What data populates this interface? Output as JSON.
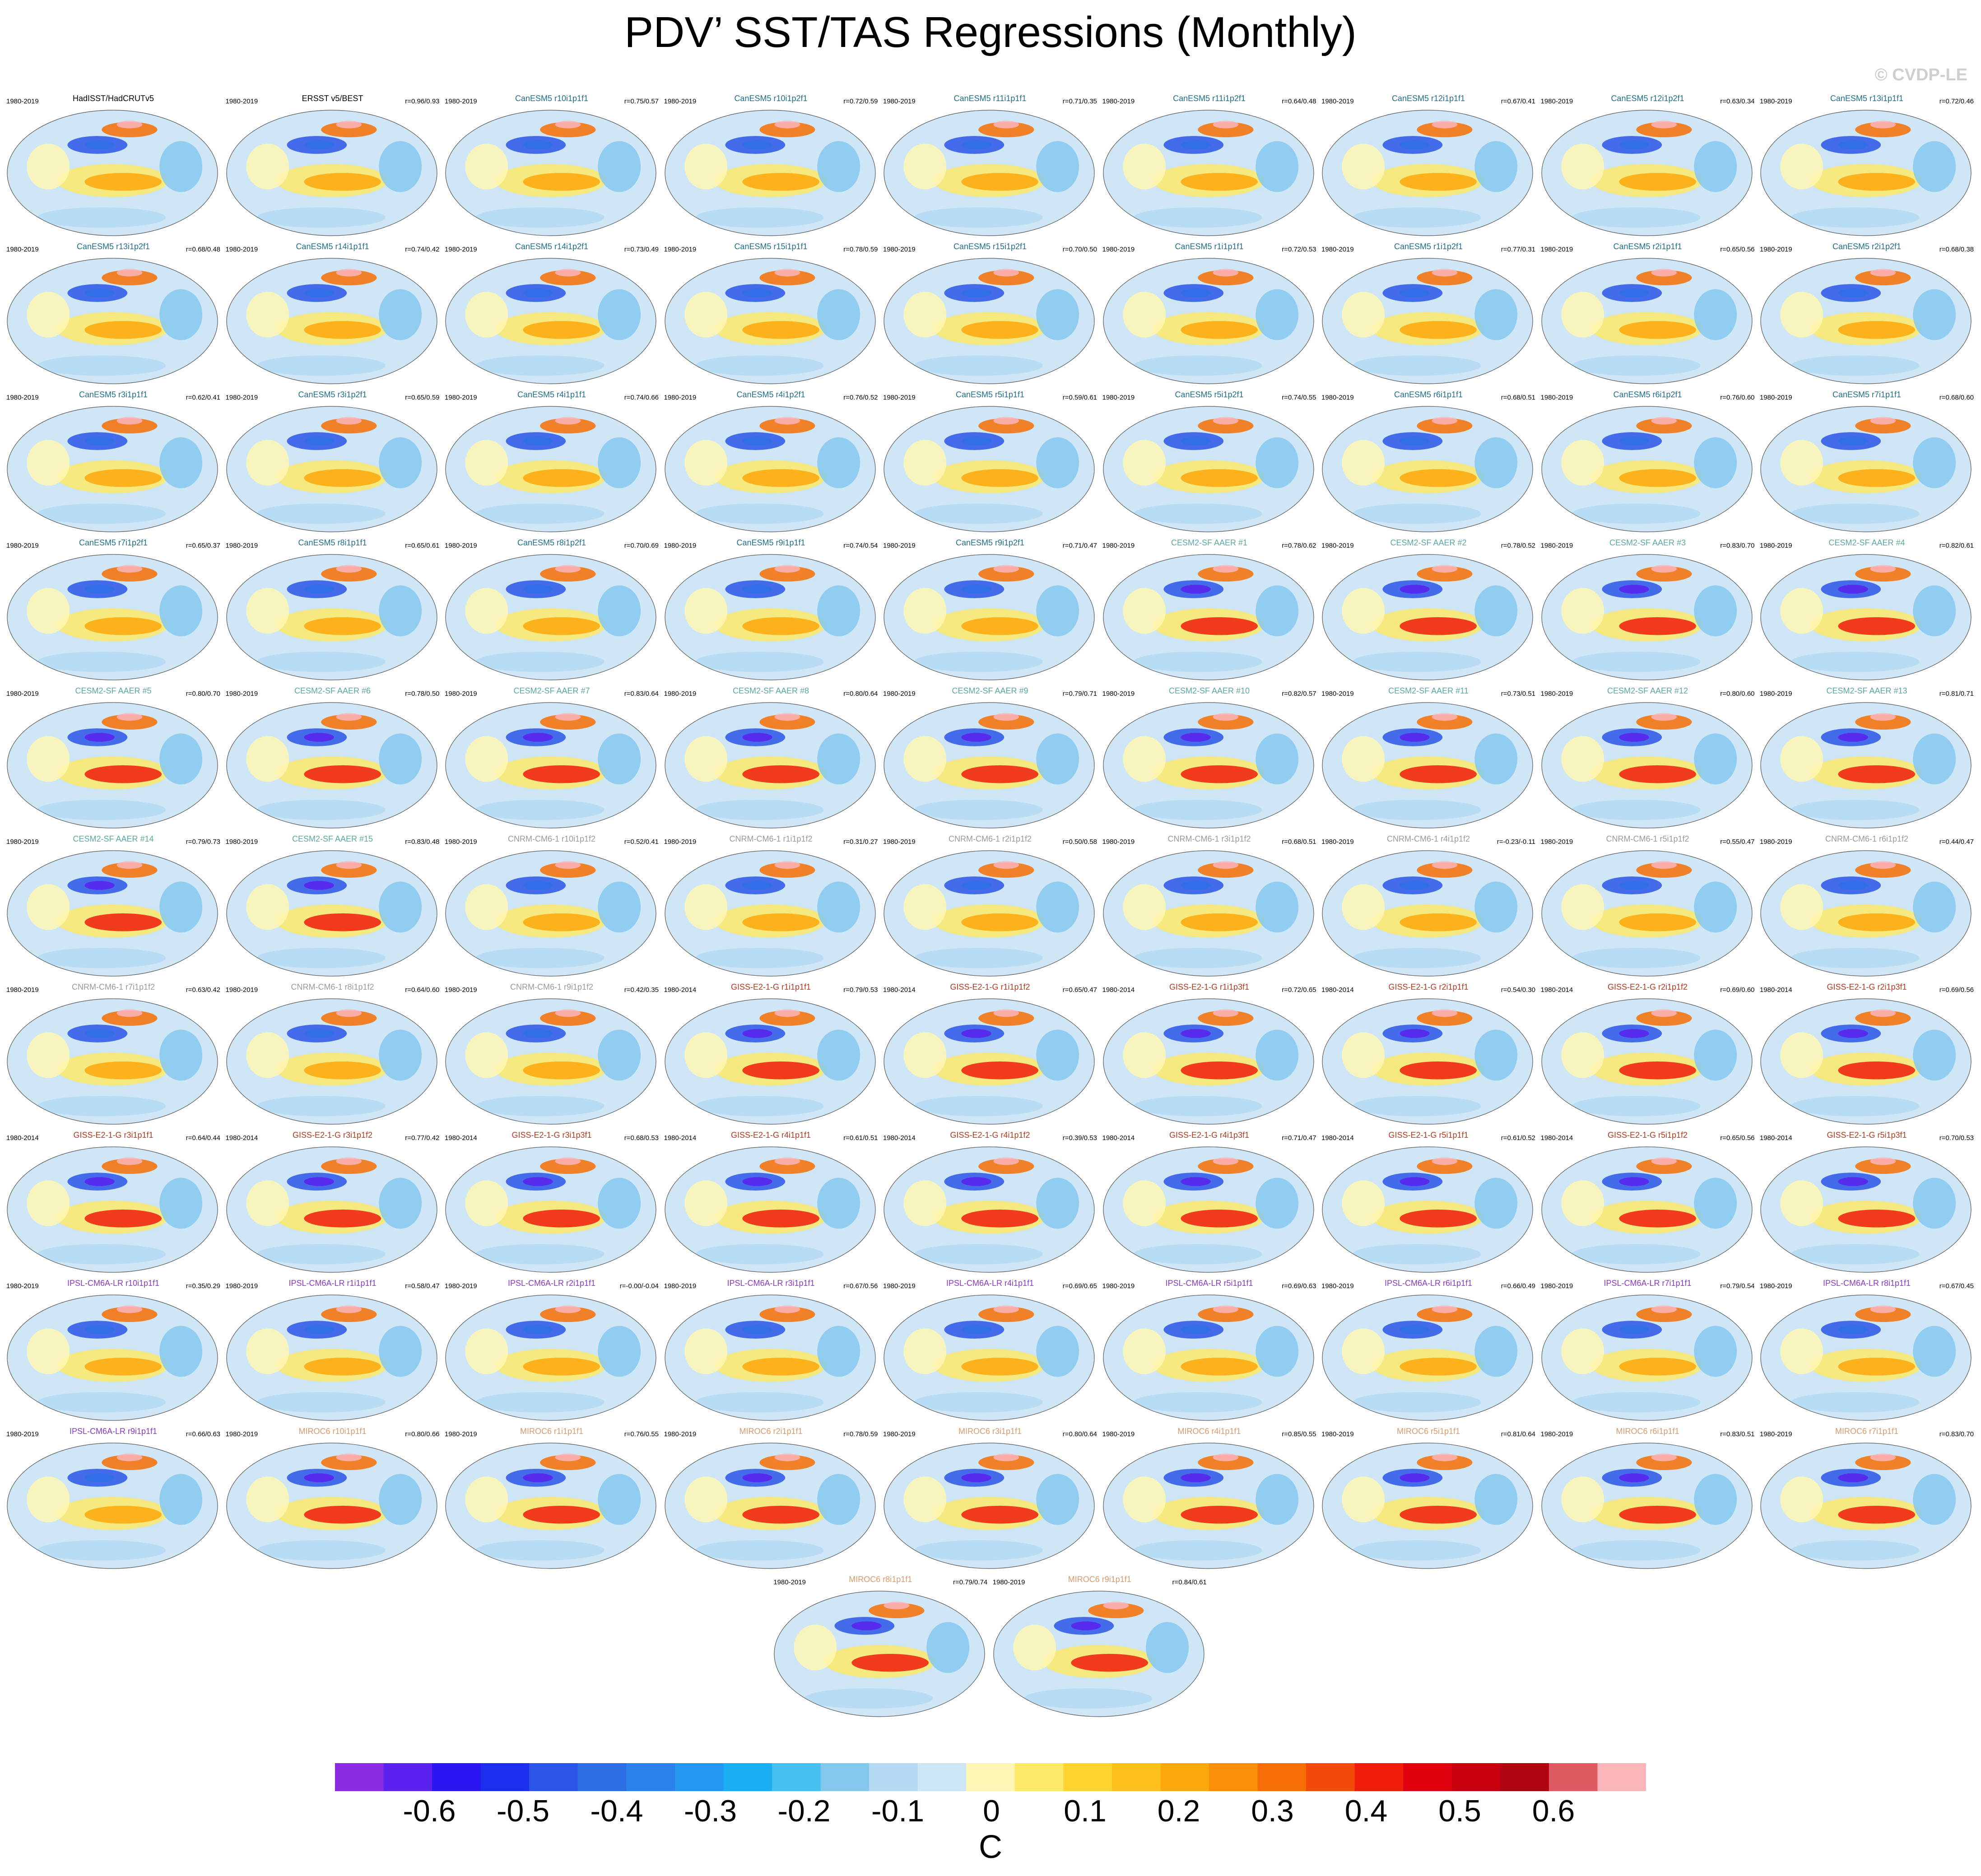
{
  "title": "PDV’ SST/TAS Regressions (Monthly)",
  "watermark": "© CVDP-LE",
  "colors": {
    "obs_title": "#000000",
    "CanESM5": "#1f6f8b",
    "CESM2": "#5aa9a0",
    "CNRM": "#9a9a9a",
    "GISS": "#b33a1e",
    "IPSL": "#8a38c8",
    "MIROC6": "#d99a6c"
  },
  "colorbar": {
    "ticks": [
      "-0.6",
      "-0.5",
      "-0.4",
      "-0.3",
      "-0.2",
      "-0.1",
      "0",
      "0.1",
      "0.2",
      "0.3",
      "0.4",
      "0.5",
      "0.6"
    ],
    "units": "C",
    "colors": [
      "#8a2be2",
      "#5a20ee",
      "#2a16f5",
      "#1c2fee",
      "#2a55e8",
      "#2e6fe6",
      "#2b82ec",
      "#2596f2",
      "#1aaef5",
      "#47bff0",
      "#85c8ee",
      "#b3d9f3",
      "#cde6f5",
      "#fff6b4",
      "#fde96a",
      "#fed530",
      "#fdbf1a",
      "#fba80c",
      "#f98f06",
      "#f66e05",
      "#f24a08",
      "#ef1d0a",
      "#e1000d",
      "#c8000e",
      "#b00510",
      "#de5c61",
      "#fbb5bb"
    ]
  },
  "chart_data": {
    "type": "heatmap",
    "title": "PDV’ SST/TAS Regressions (Monthly)",
    "units": "C",
    "range": [
      -0.6,
      0.6
    ],
    "panels": [
      {
        "title": "HadISST/HadCRUTv5",
        "period": "1980-2019",
        "corr": "",
        "group": "obs_title"
      },
      {
        "title": "ERSST v5/BEST",
        "period": "1980-2019",
        "corr": "r=0.96/0.93",
        "group": "obs_title"
      },
      {
        "title": "CanESM5 r10i1p1f1",
        "period": "1980-2019",
        "corr": "r=0.75/0.57",
        "group": "CanESM5"
      },
      {
        "title": "CanESM5 r10i1p2f1",
        "period": "1980-2019",
        "corr": "r=0.72/0.59",
        "group": "CanESM5"
      },
      {
        "title": "CanESM5 r11i1p1f1",
        "period": "1980-2019",
        "corr": "r=0.71/0.35",
        "group": "CanESM5"
      },
      {
        "title": "CanESM5 r11i1p2f1",
        "period": "1980-2019",
        "corr": "r=0.64/0.48",
        "group": "CanESM5"
      },
      {
        "title": "CanESM5 r12i1p1f1",
        "period": "1980-2019",
        "corr": "r=0.67/0.41",
        "group": "CanESM5"
      },
      {
        "title": "CanESM5 r12i1p2f1",
        "period": "1980-2019",
        "corr": "r=0.63/0.34",
        "group": "CanESM5"
      },
      {
        "title": "CanESM5 r13i1p1f1",
        "period": "1980-2019",
        "corr": "r=0.72/0.46",
        "group": "CanESM5"
      },
      {
        "title": "CanESM5 r13i1p2f1",
        "period": "1980-2019",
        "corr": "r=0.68/0.48",
        "group": "CanESM5"
      },
      {
        "title": "CanESM5 r14i1p1f1",
        "period": "1980-2019",
        "corr": "r=0.74/0.42",
        "group": "CanESM5"
      },
      {
        "title": "CanESM5 r14i1p2f1",
        "period": "1980-2019",
        "corr": "r=0.73/0.49",
        "group": "CanESM5"
      },
      {
        "title": "CanESM5 r15i1p1f1",
        "period": "1980-2019",
        "corr": "r=0.78/0.59",
        "group": "CanESM5"
      },
      {
        "title": "CanESM5 r15i1p2f1",
        "period": "1980-2019",
        "corr": "r=0.70/0.50",
        "group": "CanESM5"
      },
      {
        "title": "CanESM5 r1i1p1f1",
        "period": "1980-2019",
        "corr": "r=0.72/0.53",
        "group": "CanESM5"
      },
      {
        "title": "CanESM5 r1i1p2f1",
        "period": "1980-2019",
        "corr": "r=0.77/0.31",
        "group": "CanESM5"
      },
      {
        "title": "CanESM5 r2i1p1f1",
        "period": "1980-2019",
        "corr": "r=0.65/0.56",
        "group": "CanESM5"
      },
      {
        "title": "CanESM5 r2i1p2f1",
        "period": "1980-2019",
        "corr": "r=0.68/0.38",
        "group": "CanESM5"
      },
      {
        "title": "CanESM5 r3i1p1f1",
        "period": "1980-2019",
        "corr": "r=0.62/0.41",
        "group": "CanESM5"
      },
      {
        "title": "CanESM5 r3i1p2f1",
        "period": "1980-2019",
        "corr": "r=0.65/0.59",
        "group": "CanESM5"
      },
      {
        "title": "CanESM5 r4i1p1f1",
        "period": "1980-2019",
        "corr": "r=0.74/0.66",
        "group": "CanESM5"
      },
      {
        "title": "CanESM5 r4i1p2f1",
        "period": "1980-2019",
        "corr": "r=0.76/0.52",
        "group": "CanESM5"
      },
      {
        "title": "CanESM5 r5i1p1f1",
        "period": "1980-2019",
        "corr": "r=0.59/0.61",
        "group": "CanESM5"
      },
      {
        "title": "CanESM5 r5i1p2f1",
        "period": "1980-2019",
        "corr": "r=0.74/0.55",
        "group": "CanESM5"
      },
      {
        "title": "CanESM5 r6i1p1f1",
        "period": "1980-2019",
        "corr": "r=0.68/0.51",
        "group": "CanESM5"
      },
      {
        "title": "CanESM5 r6i1p2f1",
        "period": "1980-2019",
        "corr": "r=0.76/0.60",
        "group": "CanESM5"
      },
      {
        "title": "CanESM5 r7i1p1f1",
        "period": "1980-2019",
        "corr": "r=0.68/0.60",
        "group": "CanESM5"
      },
      {
        "title": "CanESM5 r7i1p2f1",
        "period": "1980-2019",
        "corr": "r=0.65/0.37",
        "group": "CanESM5"
      },
      {
        "title": "CanESM5 r8i1p1f1",
        "period": "1980-2019",
        "corr": "r=0.65/0.61",
        "group": "CanESM5"
      },
      {
        "title": "CanESM5 r8i1p2f1",
        "period": "1980-2019",
        "corr": "r=0.70/0.69",
        "group": "CanESM5"
      },
      {
        "title": "CanESM5 r9i1p1f1",
        "period": "1980-2019",
        "corr": "r=0.74/0.54",
        "group": "CanESM5"
      },
      {
        "title": "CanESM5 r9i1p2f1",
        "period": "1980-2019",
        "corr": "r=0.71/0.47",
        "group": "CanESM5"
      },
      {
        "title": "CESM2-SF AAER #1",
        "period": "1980-2019",
        "corr": "r=0.78/0.62",
        "group": "CESM2"
      },
      {
        "title": "CESM2-SF AAER #2",
        "period": "1980-2019",
        "corr": "r=0.78/0.52",
        "group": "CESM2"
      },
      {
        "title": "CESM2-SF AAER #3",
        "period": "1980-2019",
        "corr": "r=0.83/0.70",
        "group": "CESM2"
      },
      {
        "title": "CESM2-SF AAER #4",
        "period": "1980-2019",
        "corr": "r=0.82/0.61",
        "group": "CESM2"
      },
      {
        "title": "CESM2-SF AAER #5",
        "period": "1980-2019",
        "corr": "r=0.80/0.70",
        "group": "CESM2"
      },
      {
        "title": "CESM2-SF AAER #6",
        "period": "1980-2019",
        "corr": "r=0.78/0.50",
        "group": "CESM2"
      },
      {
        "title": "CESM2-SF AAER #7",
        "period": "1980-2019",
        "corr": "r=0.83/0.64",
        "group": "CESM2"
      },
      {
        "title": "CESM2-SF AAER #8",
        "period": "1980-2019",
        "corr": "r=0.80/0.64",
        "group": "CESM2"
      },
      {
        "title": "CESM2-SF AAER #9",
        "period": "1980-2019",
        "corr": "r=0.79/0.71",
        "group": "CESM2"
      },
      {
        "title": "CESM2-SF AAER #10",
        "period": "1980-2019",
        "corr": "r=0.82/0.57",
        "group": "CESM2"
      },
      {
        "title": "CESM2-SF AAER #11",
        "period": "1980-2019",
        "corr": "r=0.73/0.51",
        "group": "CESM2"
      },
      {
        "title": "CESM2-SF AAER #12",
        "period": "1980-2019",
        "corr": "r=0.80/0.60",
        "group": "CESM2"
      },
      {
        "title": "CESM2-SF AAER #13",
        "period": "1980-2019",
        "corr": "r=0.81/0.71",
        "group": "CESM2"
      },
      {
        "title": "CESM2-SF AAER #14",
        "period": "1980-2019",
        "corr": "r=0.79/0.73",
        "group": "CESM2"
      },
      {
        "title": "CESM2-SF AAER #15",
        "period": "1980-2019",
        "corr": "r=0.83/0.48",
        "group": "CESM2"
      },
      {
        "title": "CNRM-CM6-1 r10i1p1f2",
        "period": "1980-2019",
        "corr": "r=0.52/0.41",
        "group": "CNRM"
      },
      {
        "title": "CNRM-CM6-1 r1i1p1f2",
        "period": "1980-2019",
        "corr": "r=0.31/0.27",
        "group": "CNRM"
      },
      {
        "title": "CNRM-CM6-1 r2i1p1f2",
        "period": "1980-2019",
        "corr": "r=0.50/0.58",
        "group": "CNRM"
      },
      {
        "title": "CNRM-CM6-1 r3i1p1f2",
        "period": "1980-2019",
        "corr": "r=0.68/0.51",
        "group": "CNRM"
      },
      {
        "title": "CNRM-CM6-1 r4i1p1f2",
        "period": "1980-2019",
        "corr": "r=-0.23/-0.11",
        "group": "CNRM"
      },
      {
        "title": "CNRM-CM6-1 r5i1p1f2",
        "period": "1980-2019",
        "corr": "r=0.55/0.47",
        "group": "CNRM"
      },
      {
        "title": "CNRM-CM6-1 r6i1p1f2",
        "period": "1980-2019",
        "corr": "r=0.44/0.47",
        "group": "CNRM"
      },
      {
        "title": "CNRM-CM6-1 r7i1p1f2",
        "period": "1980-2019",
        "corr": "r=0.63/0.42",
        "group": "CNRM"
      },
      {
        "title": "CNRM-CM6-1 r8i1p1f2",
        "period": "1980-2019",
        "corr": "r=0.64/0.60",
        "group": "CNRM"
      },
      {
        "title": "CNRM-CM6-1 r9i1p1f2",
        "period": "1980-2019",
        "corr": "r=0.42/0.35",
        "group": "CNRM"
      },
      {
        "title": "GISS-E2-1-G r1i1p1f1",
        "period": "1980-2014",
        "corr": "r=0.79/0.53",
        "group": "GISS"
      },
      {
        "title": "GISS-E2-1-G r1i1p1f2",
        "period": "1980-2014",
        "corr": "r=0.65/0.47",
        "group": "GISS"
      },
      {
        "title": "GISS-E2-1-G r1i1p3f1",
        "period": "1980-2014",
        "corr": "r=0.72/0.65",
        "group": "GISS"
      },
      {
        "title": "GISS-E2-1-G r2i1p1f1",
        "period": "1980-2014",
        "corr": "r=0.54/0.30",
        "group": "GISS"
      },
      {
        "title": "GISS-E2-1-G r2i1p1f2",
        "period": "1980-2014",
        "corr": "r=0.69/0.60",
        "group": "GISS"
      },
      {
        "title": "GISS-E2-1-G r2i1p3f1",
        "period": "1980-2014",
        "corr": "r=0.69/0.56",
        "group": "GISS"
      },
      {
        "title": "GISS-E2-1-G r3i1p1f1",
        "period": "1980-2014",
        "corr": "r=0.64/0.44",
        "group": "GISS"
      },
      {
        "title": "GISS-E2-1-G r3i1p1f2",
        "period": "1980-2014",
        "corr": "r=0.77/0.42",
        "group": "GISS"
      },
      {
        "title": "GISS-E2-1-G r3i1p3f1",
        "period": "1980-2014",
        "corr": "r=0.68/0.53",
        "group": "GISS"
      },
      {
        "title": "GISS-E2-1-G r4i1p1f1",
        "period": "1980-2014",
        "corr": "r=0.61/0.51",
        "group": "GISS"
      },
      {
        "title": "GISS-E2-1-G r4i1p1f2",
        "period": "1980-2014",
        "corr": "r=0.39/0.53",
        "group": "GISS"
      },
      {
        "title": "GISS-E2-1-G r4i1p3f1",
        "period": "1980-2014",
        "corr": "r=0.71/0.47",
        "group": "GISS"
      },
      {
        "title": "GISS-E2-1-G r5i1p1f1",
        "period": "1980-2014",
        "corr": "r=0.61/0.52",
        "group": "GISS"
      },
      {
        "title": "GISS-E2-1-G r5i1p1f2",
        "period": "1980-2014",
        "corr": "r=0.65/0.56",
        "group": "GISS"
      },
      {
        "title": "GISS-E2-1-G r5i1p3f1",
        "period": "1980-2014",
        "corr": "r=0.70/0.53",
        "group": "GISS"
      },
      {
        "title": "IPSL-CM6A-LR r10i1p1f1",
        "period": "1980-2019",
        "corr": "r=0.35/0.29",
        "group": "IPSL"
      },
      {
        "title": "IPSL-CM6A-LR r1i1p1f1",
        "period": "1980-2019",
        "corr": "r=0.58/0.47",
        "group": "IPSL"
      },
      {
        "title": "IPSL-CM6A-LR r2i1p1f1",
        "period": "1980-2019",
        "corr": "r=-0.00/-0.04",
        "group": "IPSL"
      },
      {
        "title": "IPSL-CM6A-LR r3i1p1f1",
        "period": "1980-2019",
        "corr": "r=0.67/0.56",
        "group": "IPSL"
      },
      {
        "title": "IPSL-CM6A-LR r4i1p1f1",
        "period": "1980-2019",
        "corr": "r=0.69/0.65",
        "group": "IPSL"
      },
      {
        "title": "IPSL-CM6A-LR r5i1p1f1",
        "period": "1980-2019",
        "corr": "r=0.69/0.63",
        "group": "IPSL"
      },
      {
        "title": "IPSL-CM6A-LR r6i1p1f1",
        "period": "1980-2019",
        "corr": "r=0.66/0.49",
        "group": "IPSL"
      },
      {
        "title": "IPSL-CM6A-LR r7i1p1f1",
        "period": "1980-2019",
        "corr": "r=0.79/0.54",
        "group": "IPSL"
      },
      {
        "title": "IPSL-CM6A-LR r8i1p1f1",
        "period": "1980-2019",
        "corr": "r=0.67/0.45",
        "group": "IPSL"
      },
      {
        "title": "IPSL-CM6A-LR r9i1p1f1",
        "period": "1980-2019",
        "corr": "r=0.66/0.63",
        "group": "IPSL"
      },
      {
        "title": "MIROC6 r10i1p1f1",
        "period": "1980-2019",
        "corr": "r=0.80/0.66",
        "group": "MIROC6"
      },
      {
        "title": "MIROC6 r1i1p1f1",
        "period": "1980-2019",
        "corr": "r=0.76/0.55",
        "group": "MIROC6"
      },
      {
        "title": "MIROC6 r2i1p1f1",
        "period": "1980-2019",
        "corr": "r=0.78/0.59",
        "group": "MIROC6"
      },
      {
        "title": "MIROC6 r3i1p1f1",
        "period": "1980-2019",
        "corr": "r=0.80/0.64",
        "group": "MIROC6"
      },
      {
        "title": "MIROC6 r4i1p1f1",
        "period": "1980-2019",
        "corr": "r=0.85/0.55",
        "group": "MIROC6"
      },
      {
        "title": "MIROC6 r5i1p1f1",
        "period": "1980-2019",
        "corr": "r=0.81/0.64",
        "group": "MIROC6"
      },
      {
        "title": "MIROC6 r6i1p1f1",
        "period": "1980-2019",
        "corr": "r=0.83/0.51",
        "group": "MIROC6"
      },
      {
        "title": "MIROC6 r7i1p1f1",
        "period": "1980-2019",
        "corr": "r=0.83/0.70",
        "group": "MIROC6"
      },
      {
        "title": "MIROC6 r8i1p1f1",
        "period": "1980-2019",
        "corr": "r=0.79/0.74",
        "group": "MIROC6"
      },
      {
        "title": "MIROC6 r9i1p1f1",
        "period": "1980-2019",
        "corr": "r=0.84/0.61",
        "group": "MIROC6"
      }
    ]
  }
}
